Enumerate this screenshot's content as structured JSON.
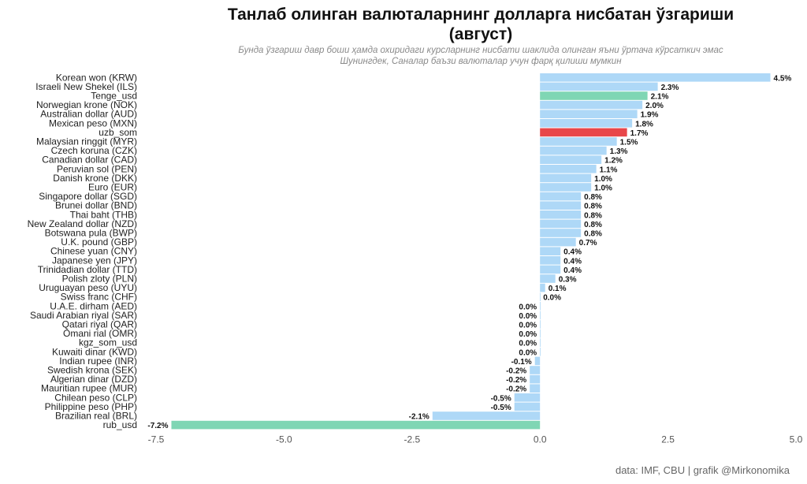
{
  "title_line1": "Танлаб олинган валюталарнинг  долларга нисбатан ўзгариши",
  "title_line2": "(август)",
  "subtitle_line1": "Бунда ўзгариш давр боши ҳамда охиридаги  курсларнинг нисбати шаклида олинган яъни ўртача кўрсаткич эмас",
  "subtitle_line2": "Шунингдек, Саналар  баъзи валюталар учун  фарқ қилиши мумкин",
  "caption": "data: IMF, CBU | grafik @Mirkonomika",
  "chart_data": {
    "type": "bar",
    "orientation": "horizontal",
    "xlim": [
      -7.5,
      5.0
    ],
    "xticks": [
      -7.5,
      -5.0,
      -2.5,
      0.0,
      2.5,
      5.0
    ],
    "xtick_labels": [
      "-7.5",
      "-5.0",
      "-2.5",
      "0.0",
      "2.5",
      "5.0"
    ],
    "grid": false,
    "categories": [
      "Korean won (KRW)",
      "Israeli New Shekel (ILS)",
      "Tenge_usd",
      "Norwegian krone (NOK)",
      "Australian dollar (AUD)",
      "Mexican peso (MXN)",
      "uzb_som",
      "Malaysian ringgit (MYR)",
      "Czech koruna (CZK)",
      "Canadian dollar (CAD)",
      "Peruvian sol (PEN)",
      "Danish krone (DKK)",
      "Euro (EUR)",
      "Singapore dollar (SGD)",
      "Brunei dollar (BND)",
      "Thai baht (THB)",
      "New Zealand dollar (NZD)",
      "Botswana pula (BWP)",
      "U.K. pound (GBP)",
      "Chinese yuan (CNY)",
      "Japanese yen (JPY)",
      "Trinidadian dollar (TTD)",
      "Polish zloty (PLN)",
      "Uruguayan peso (UYU)",
      "Swiss franc (CHF)",
      "U.A.E. dirham (AED)",
      "Saudi Arabian riyal (SAR)",
      "Qatari riyal (QAR)",
      "Omani rial (OMR)",
      "kgz_som_usd",
      "Kuwaiti dinar (KWD)",
      "Indian rupee (INR)",
      "Swedish krona (SEK)",
      "Algerian dinar (DZD)",
      "Mauritian rupee (MUR)",
      "Chilean peso (CLP)",
      "Philippine peso (PHP)",
      "Brazilian real (BRL)",
      "rub_usd"
    ],
    "values": [
      4.5,
      2.3,
      2.1,
      2.0,
      1.9,
      1.8,
      1.7,
      1.5,
      1.3,
      1.2,
      1.1,
      1.0,
      1.0,
      0.8,
      0.8,
      0.8,
      0.8,
      0.8,
      0.7,
      0.4,
      0.4,
      0.4,
      0.3,
      0.1,
      0.0,
      0.0,
      0.0,
      0.0,
      0.0,
      0.0,
      0.0,
      -0.1,
      -0.2,
      -0.2,
      -0.2,
      -0.5,
      -0.5,
      -2.1,
      -7.2
    ],
    "value_labels": [
      "4.5%",
      "2.3%",
      "2.1%",
      "2.0%",
      "1.9%",
      "1.8%",
      "1.7%",
      "1.5%",
      "1.3%",
      "1.2%",
      "1.1%",
      "1.0%",
      "1.0%",
      "0.8%",
      "0.8%",
      "0.8%",
      "0.8%",
      "0.8%",
      "0.7%",
      "0.4%",
      "0.4%",
      "0.4%",
      "0.3%",
      "0.1%",
      "0.0%",
      "0.0%",
      "0.0%",
      "0.0%",
      "0.0%",
      "0.0%",
      "0.0%",
      "-0.1%",
      "-0.2%",
      "-0.2%",
      "-0.2%",
      "-0.5%",
      "-0.5%",
      "-2.1%",
      "-7.2%"
    ],
    "colors": {
      "default": "#aed8f7",
      "tenge_usd": "#7fd6b4",
      "rub_usd": "#7fd6b4",
      "uzb_som": "#e8474a"
    },
    "highlight": {
      "Tenge_usd": "tenge_usd",
      "rub_usd": "rub_usd",
      "uzb_som": "uzb_som"
    }
  }
}
